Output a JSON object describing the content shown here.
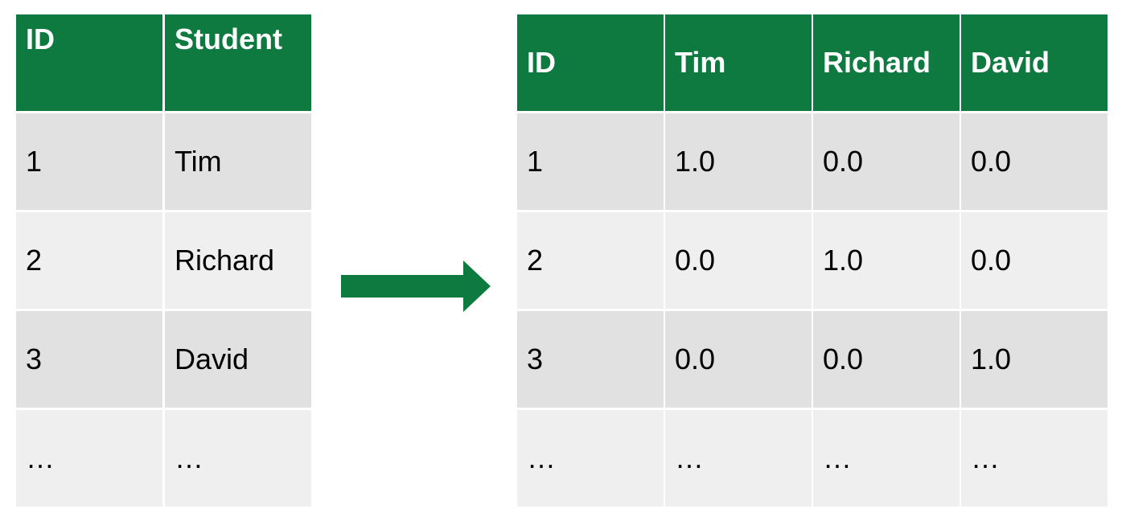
{
  "left_table": {
    "headers": [
      "ID",
      "Student"
    ],
    "rows": [
      [
        "1",
        "Tim"
      ],
      [
        "2",
        "Richard"
      ],
      [
        "3",
        "David"
      ],
      [
        "…",
        "…"
      ]
    ]
  },
  "right_table": {
    "headers": [
      "ID",
      "Tim",
      "Richard",
      "David"
    ],
    "rows": [
      [
        "1",
        "1.0",
        "0.0",
        "0.0"
      ],
      [
        "2",
        "0.0",
        "1.0",
        "0.0"
      ],
      [
        "3",
        "0.0",
        "0.0",
        "1.0"
      ],
      [
        "…",
        "…",
        "…",
        "…"
      ]
    ]
  },
  "colors": {
    "header_green": "#0e7a40",
    "arrow_green": "#0e7a40",
    "row_dark": "#e1e1e1",
    "row_light": "#efefef"
  },
  "arrow": {
    "icon": "right-arrow-icon"
  }
}
